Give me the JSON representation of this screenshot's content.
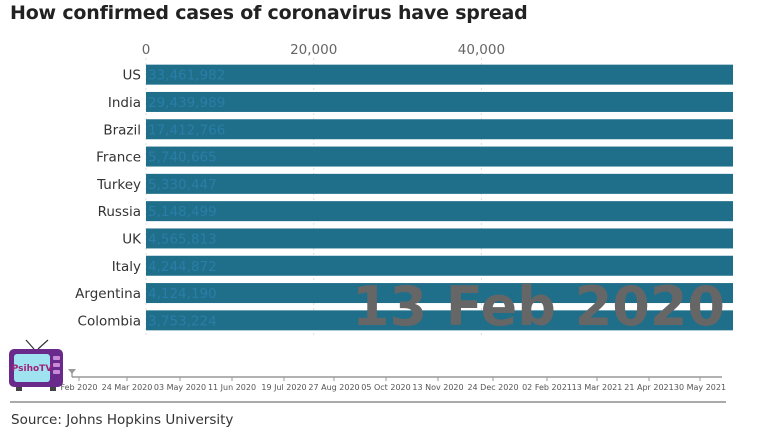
{
  "chart_data": {
    "type": "bar",
    "title": "How confirmed cases of coronavirus have spread",
    "xlabel": "",
    "ylabel": "",
    "xlim": [
      0,
      70000
    ],
    "x_ticks": [
      0,
      20000,
      40000
    ],
    "x_tick_labels": [
      "0",
      "20,000",
      "40,000"
    ],
    "grid": true,
    "categories": [
      "US",
      "India",
      "Brazil",
      "France",
      "Turkey",
      "Russia",
      "UK",
      "Italy",
      "Argentina",
      "Colombia"
    ],
    "values": [
      33461982,
      29439989,
      17412766,
      5740665,
      5330447,
      5148499,
      4565813,
      4244872,
      4124190,
      3753224
    ],
    "value_labels": [
      "33,461,982",
      "29,439,989",
      "17,412,766",
      "5,740,665",
      "5,330,447",
      "5,148,499",
      "4,565,813",
      "4,244,872",
      "4,124,190",
      "3,753,224"
    ],
    "bar_color": "#1f6f8b",
    "value_label_color": "#2a7da6",
    "date_label": "13 Feb 2020",
    "timeline": {
      "labels": [
        "Feb 2020",
        "24 Mar 2020",
        "03 May 2020",
        "11 Jun 2020",
        "19 Jul 2020",
        "27 Aug 2020",
        "05 Oct 2020",
        "13 Nov 2020",
        "24 Dec 2020",
        "02 Feb 2021",
        "13 Mar 2021",
        "21 Apr 2021",
        "30 May 2021"
      ],
      "position": 0
    },
    "source": "Source: Johns Hopkins University"
  },
  "logo": {
    "text": "PsihoTV"
  },
  "colors": {
    "date_label": "#666666",
    "axis": "#999999",
    "grid": "#dddddd"
  }
}
